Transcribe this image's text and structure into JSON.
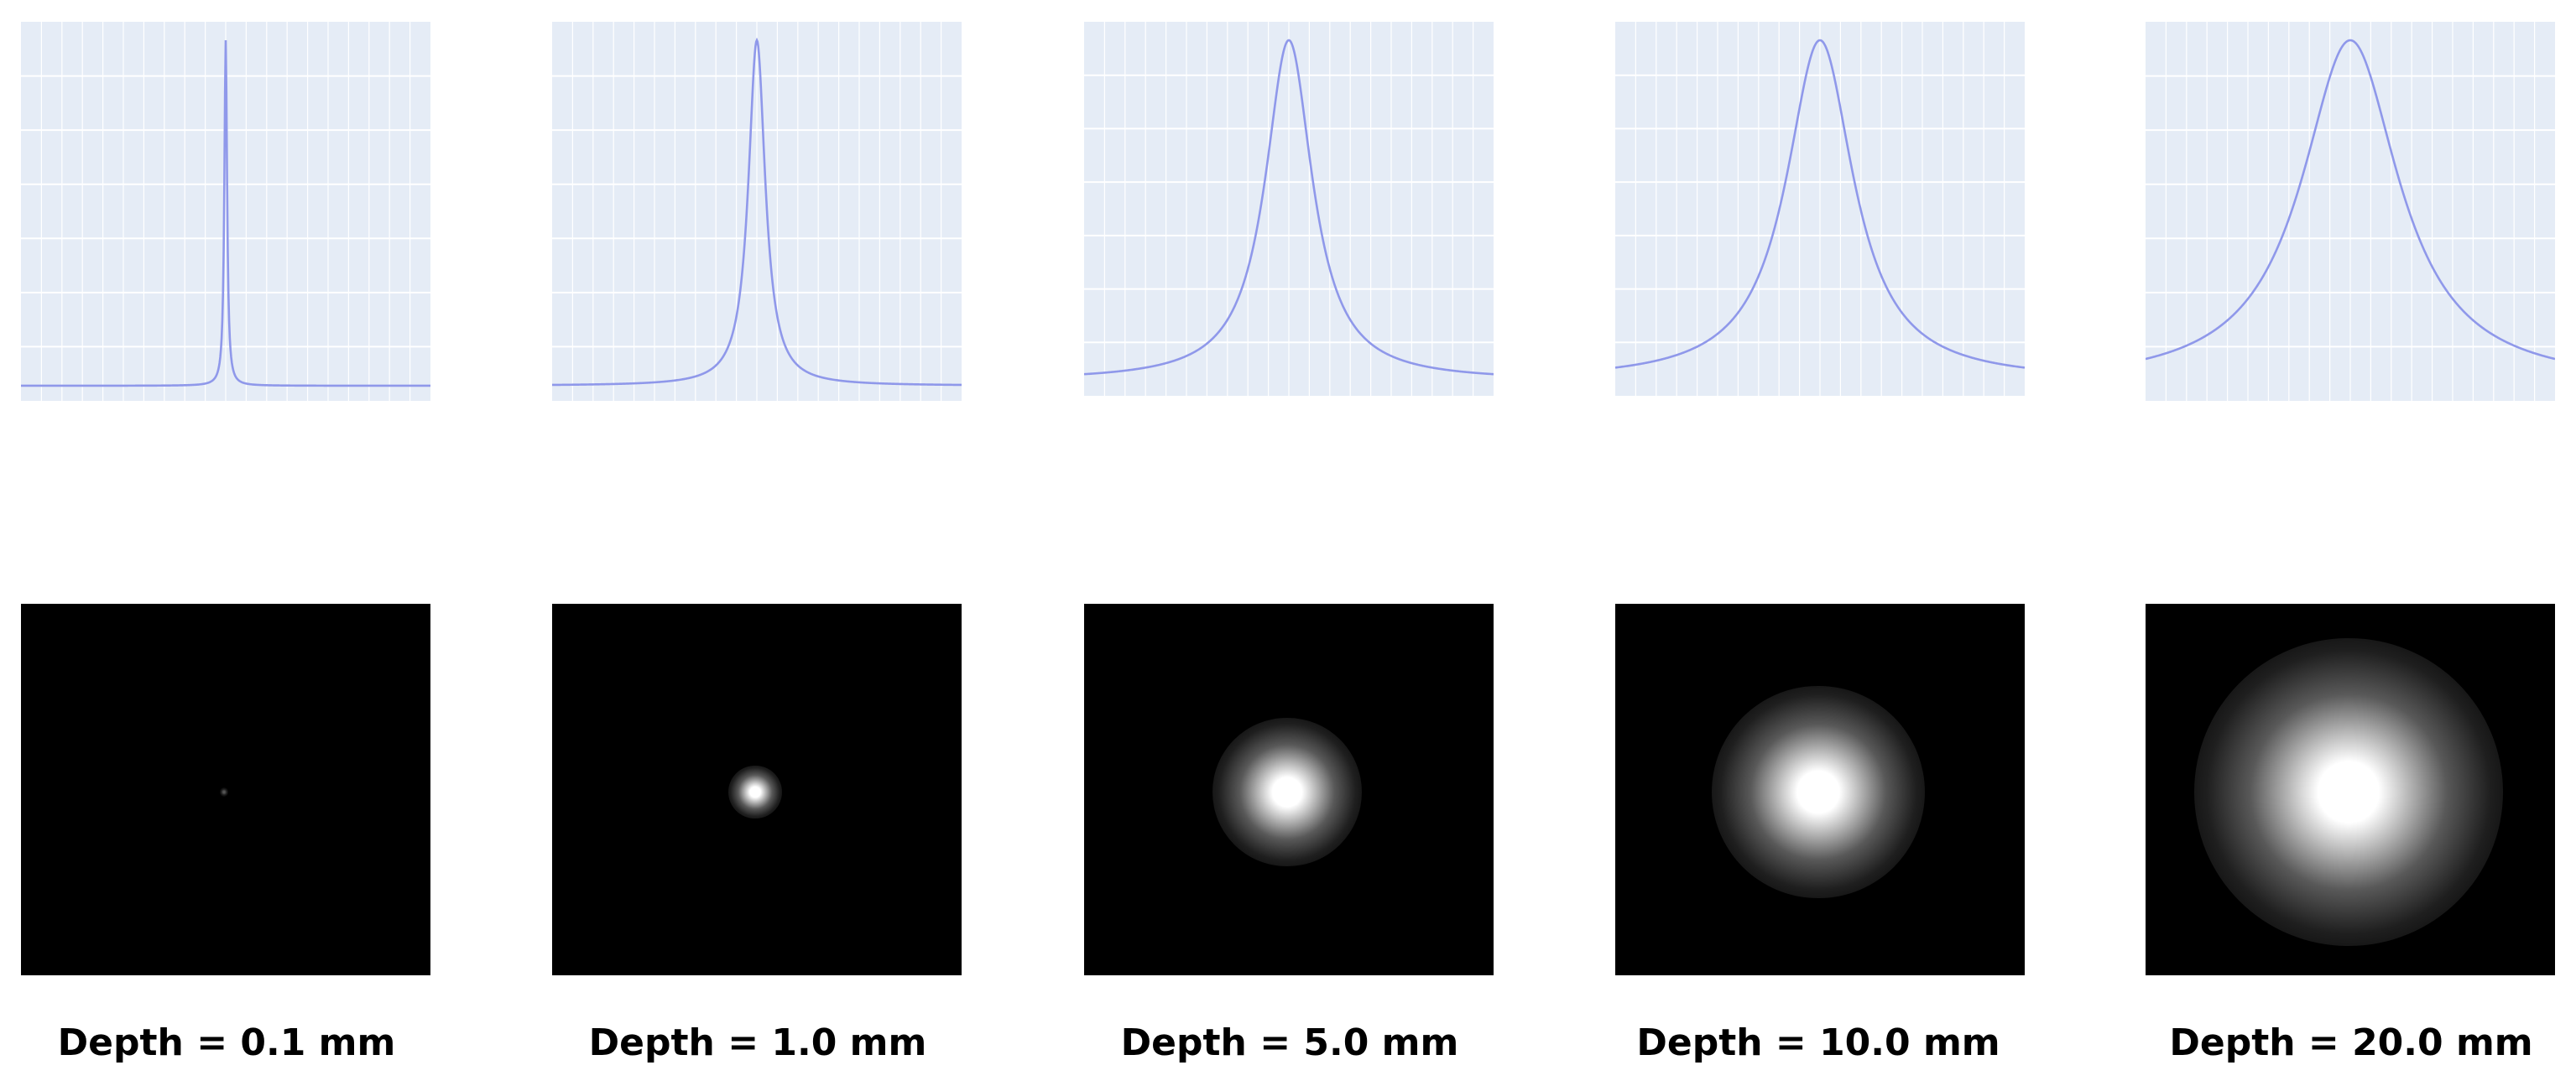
{
  "colors": {
    "plot_background": "#e5ecf6",
    "grid": "#ffffff",
    "curve": "#8f98ea",
    "image_background": "#000000",
    "spot": "#ffffff"
  },
  "panels": [
    {
      "caption": "Depth = 0.1 mm",
      "relative_spread": 0.004
    },
    {
      "caption": "Depth = 1.0 mm",
      "relative_spread": 0.025
    },
    {
      "caption": "Depth = 5.0 mm",
      "relative_spread": 0.07
    },
    {
      "caption": "Depth = 10.0 mm",
      "relative_spread": 0.1
    },
    {
      "caption": "Depth = 20.0 mm",
      "relative_spread": 0.145
    }
  ]
}
